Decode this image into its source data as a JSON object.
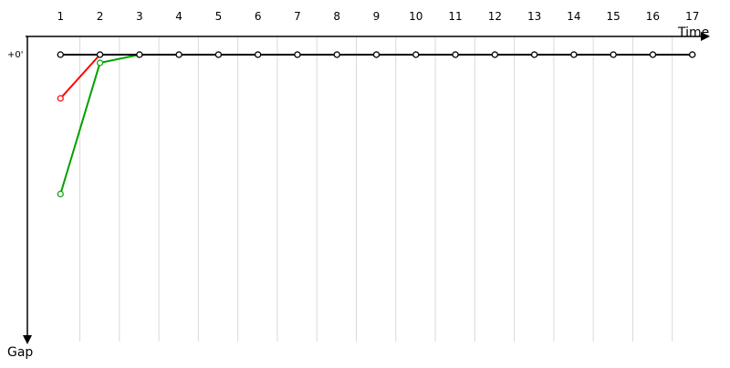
{
  "chart_data": {
    "type": "line",
    "x_label": "Time",
    "y_label": "Gap",
    "y_tick_label": "+0'",
    "x": [
      1,
      2,
      3,
      4,
      5,
      6,
      7,
      8,
      9,
      10,
      11,
      12,
      13,
      14,
      15,
      16,
      17
    ],
    "xlim": [
      0,
      18
    ],
    "y_direction": "down",
    "series": [
      {
        "color": "#00a000",
        "values": [
          5.1,
          0.3,
          0,
          0,
          0,
          0,
          0,
          0,
          0,
          0,
          0,
          0,
          0,
          0,
          0,
          0,
          0
        ]
      },
      {
        "color": "#0000c8",
        "values": [
          0,
          0,
          0,
          0,
          0,
          0,
          0,
          0,
          0,
          0,
          0,
          0,
          0,
          0,
          0,
          0,
          0
        ]
      },
      {
        "color": "#ff0000",
        "values": [
          1.6,
          0,
          0,
          0,
          0,
          0,
          0,
          0,
          0,
          0,
          0,
          0,
          0,
          0,
          0,
          0,
          0
        ]
      },
      {
        "color": "#c832c8",
        "values": [
          0,
          0,
          0,
          0,
          0,
          0,
          0,
          0,
          0,
          0,
          0,
          0,
          0,
          0,
          0,
          0,
          0
        ]
      },
      {
        "color": "#000000",
        "values": [
          0,
          0,
          0,
          0,
          0,
          0,
          0,
          0,
          0,
          0,
          0,
          0,
          0,
          0,
          0,
          0,
          0
        ]
      }
    ]
  },
  "x_axis_ticks": [
    "1",
    "2",
    "3",
    "4",
    "5",
    "6",
    "7",
    "8",
    "9",
    "10",
    "11",
    "12",
    "13",
    "14",
    "15",
    "16",
    "17"
  ]
}
